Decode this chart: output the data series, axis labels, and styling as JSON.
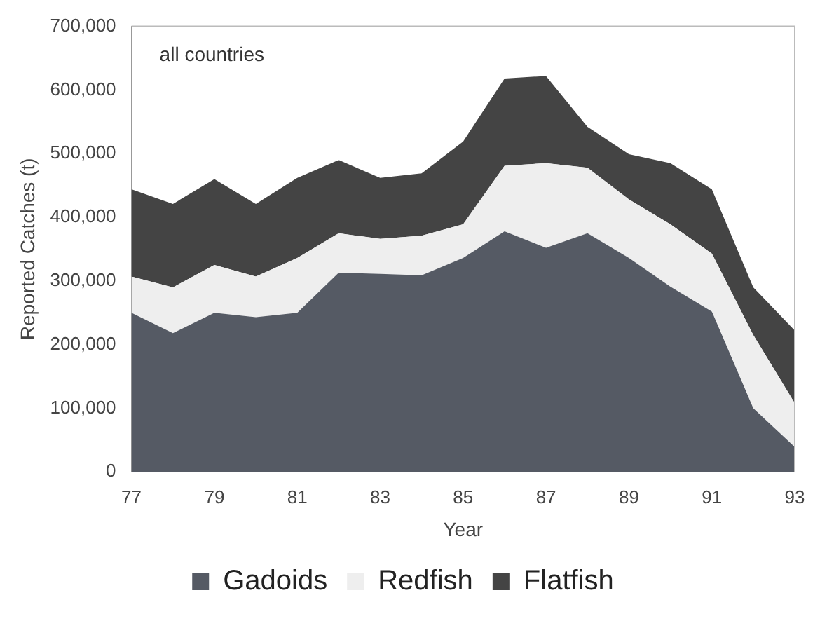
{
  "chart_data": {
    "type": "area",
    "stacked": true,
    "xlabel": "Year",
    "ylabel": "Reported Catches (t)",
    "annotations": [
      "all countries"
    ],
    "x": [
      77,
      78,
      79,
      80,
      81,
      82,
      83,
      84,
      85,
      86,
      87,
      88,
      89,
      90,
      91,
      92,
      93
    ],
    "xlim": [
      77,
      93
    ],
    "xticks": [
      77,
      79,
      81,
      83,
      85,
      87,
      89,
      91,
      93
    ],
    "ylim": [
      0,
      700000
    ],
    "yticks": [
      0,
      {
        "value": 100000,
        "label": "100,000"
      },
      {
        "value": 200000,
        "label": "200,000"
      },
      {
        "value": 300000,
        "label": "300,000"
      },
      {
        "value": 400000,
        "label": "400,000"
      },
      {
        "value": 500000,
        "label": "500,000"
      },
      {
        "value": 600000,
        "label": "600,000"
      },
      {
        "value": 700000,
        "label": "700,000"
      }
    ],
    "grid": false,
    "legend": "bottom",
    "series": [
      {
        "name": "Gadoids",
        "color": "#555a64",
        "values": [
          250000,
          218000,
          250000,
          243000,
          250000,
          313000,
          311000,
          309000,
          336000,
          378000,
          352000,
          375000,
          336000,
          291000,
          252000,
          100000,
          39000
        ]
      },
      {
        "name": "Redfish",
        "color": "#eeeeee",
        "values": [
          57000,
          72000,
          75000,
          64000,
          86000,
          62000,
          55000,
          62000,
          53000,
          103000,
          133000,
          103000,
          92000,
          98000,
          91000,
          115000,
          69000
        ]
      },
      {
        "name": "Flatfish",
        "color": "#444444",
        "values": [
          137000,
          131000,
          135000,
          114000,
          126000,
          115000,
          96000,
          98000,
          130000,
          137000,
          137000,
          64000,
          71000,
          96000,
          101000,
          75000,
          114000
        ]
      }
    ]
  }
}
